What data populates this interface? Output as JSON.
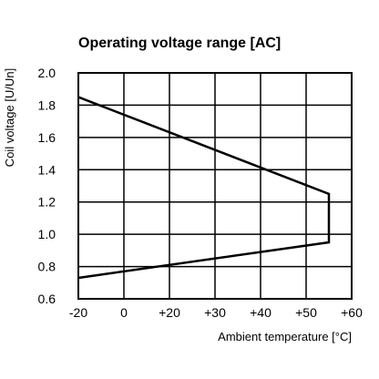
{
  "chart_data": {
    "type": "line",
    "title": "Operating voltage range [AC]",
    "xlabel": "Ambient temperature [°C]",
    "ylabel": "Coil voltage [U/Un]",
    "xlim": [
      -20,
      60
    ],
    "ylim": [
      0.6,
      2.0
    ],
    "grid": true,
    "x_ticks": [
      {
        "value": -20,
        "label": "-20"
      },
      {
        "value": 0,
        "label": "0"
      },
      {
        "value": 20,
        "label": "+20"
      },
      {
        "value": 30,
        "label": "+30"
      },
      {
        "value": 40,
        "label": "+40"
      },
      {
        "value": 50,
        "label": "+50"
      },
      {
        "value": 60,
        "label": "+60"
      }
    ],
    "x_grid": [
      -20,
      0,
      20,
      30,
      40,
      50,
      60
    ],
    "y_ticks": [
      {
        "value": 0.6,
        "label": "0.6"
      },
      {
        "value": 0.8,
        "label": "0.8"
      },
      {
        "value": 1.0,
        "label": "1.0"
      },
      {
        "value": 1.2,
        "label": "1.2"
      },
      {
        "value": 1.4,
        "label": "1.4"
      },
      {
        "value": 1.6,
        "label": "1.6"
      },
      {
        "value": 1.8,
        "label": "1.8"
      },
      {
        "value": 2.0,
        "label": "2.0"
      }
    ],
    "series": [
      {
        "points": [
          {
            "x": -20,
            "y": 1.85
          },
          {
            "x": 55,
            "y": 1.25
          },
          {
            "x": 55,
            "y": 0.95
          },
          {
            "x": -20,
            "y": 0.73
          }
        ]
      }
    ]
  }
}
